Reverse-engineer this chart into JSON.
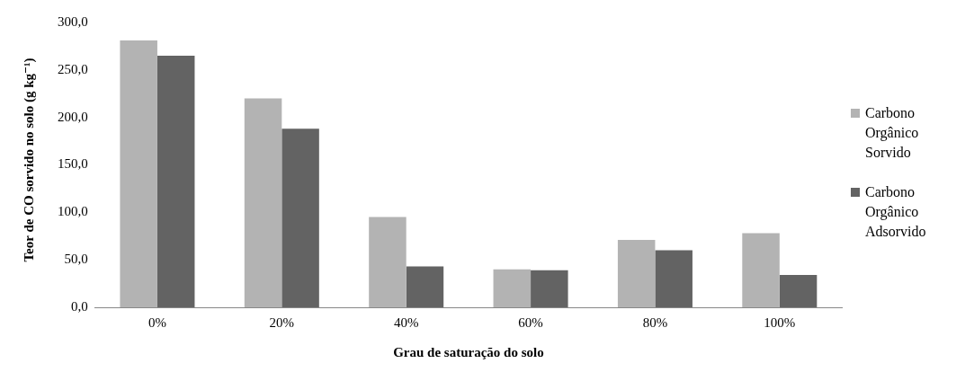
{
  "chart_data": {
    "type": "bar",
    "xlabel": "Grau de saturação do solo",
    "ylabel": "Teor de CO sorvido no solo (g kg⁻¹)",
    "categories": [
      "0%",
      "20%",
      "40%",
      "60%",
      "80%",
      "100%"
    ],
    "series": [
      {
        "name": "Carbono Orgânico Sorvido",
        "color": "#b3b3b3",
        "values": [
          281,
          220,
          95,
          40,
          71,
          78
        ]
      },
      {
        "name": "Carbono Orgânico Adsorvido",
        "color": "#636363",
        "values": [
          265,
          188,
          43,
          39,
          60,
          34
        ]
      }
    ],
    "ylim": [
      0,
      300
    ],
    "yticks": [
      {
        "value": 0,
        "label": "0,0"
      },
      {
        "value": 50,
        "label": "50,0"
      },
      {
        "value": 100,
        "label": "100,0"
      },
      {
        "value": 150,
        "label": "150,0"
      },
      {
        "value": 200,
        "label": "200,0"
      },
      {
        "value": 250,
        "label": "250,0"
      },
      {
        "value": 300,
        "label": "300,0"
      }
    ],
    "grid": false,
    "legend": "right"
  }
}
